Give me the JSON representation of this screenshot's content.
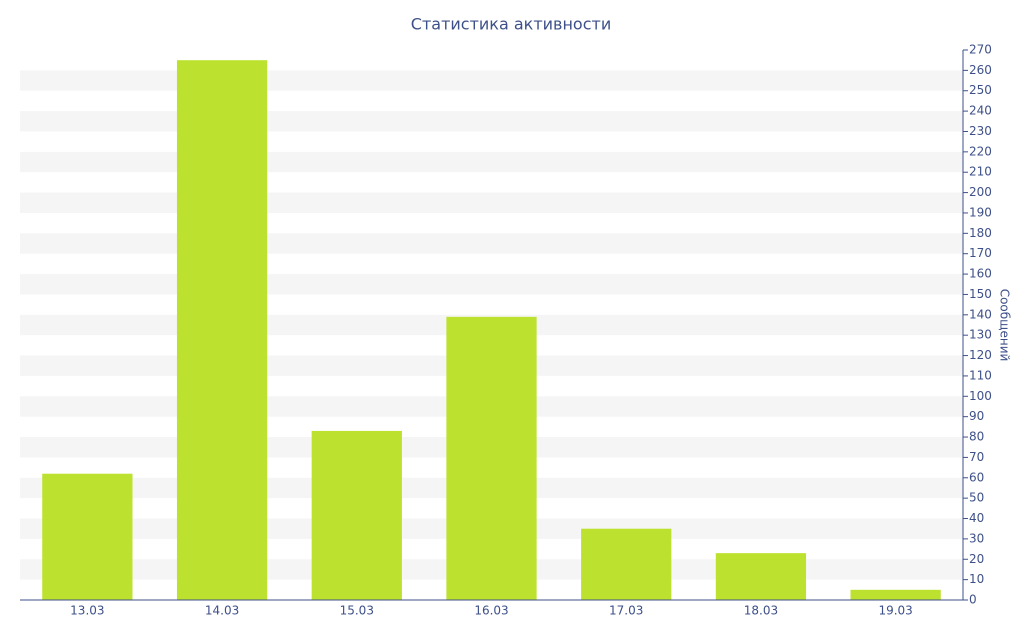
{
  "chart_data": {
    "type": "bar",
    "title": "Статистика активности",
    "y_axis_label": "Сообщений",
    "categories": [
      "13.03",
      "14.03",
      "15.03",
      "16.03",
      "17.03",
      "18.03",
      "19.03"
    ],
    "values": [
      62,
      265,
      83,
      139,
      35,
      23,
      5
    ],
    "color": "#bce22f",
    "ylim": [
      0,
      270
    ],
    "yticks": [
      0,
      10,
      20,
      30,
      40,
      50,
      60,
      70,
      80,
      90,
      100,
      110,
      120,
      130,
      140,
      150,
      160,
      170,
      180,
      190,
      200,
      210,
      220,
      230,
      240,
      250,
      260,
      270
    ],
    "grid": "bands",
    "y_axis_side": "right"
  }
}
